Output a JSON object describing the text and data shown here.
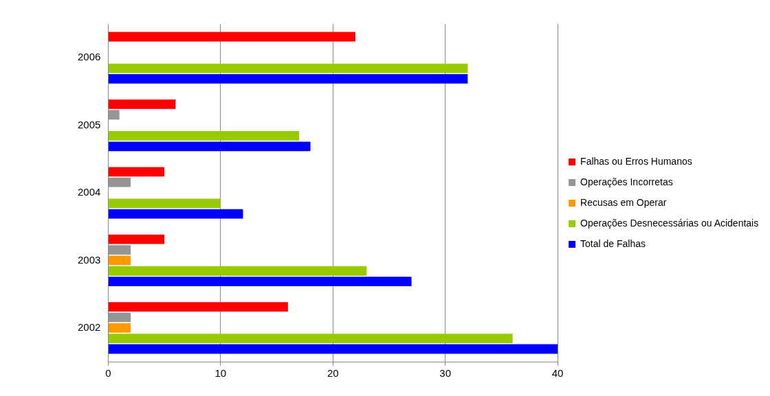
{
  "chart_data": {
    "type": "bar",
    "orientation": "horizontal",
    "categories": [
      "2006",
      "2005",
      "2004",
      "2003",
      "2002"
    ],
    "series": [
      {
        "name": "Falhas ou Erros Humanos",
        "color": "#ff0000",
        "values": [
          22,
          6,
          5,
          5,
          16
        ]
      },
      {
        "name": "Operações Incorretas",
        "color": "#969696",
        "values": [
          0,
          1,
          2,
          2,
          2
        ]
      },
      {
        "name": "Recusas em Operar",
        "color": "#ff9900",
        "values": [
          0,
          0,
          0,
          2,
          2
        ]
      },
      {
        "name": "Operações Desnecessárias ou Acidentais",
        "color": "#99cc00",
        "values": [
          32,
          17,
          10,
          23,
          36
        ]
      },
      {
        "name": "Total de Falhas",
        "color": "#0000ff",
        "values": [
          32,
          18,
          12,
          27,
          40
        ]
      }
    ],
    "xlim": [
      0,
      40
    ],
    "xticks": [
      0,
      10,
      20,
      30,
      40
    ],
    "grid": "x",
    "legend": "right"
  }
}
